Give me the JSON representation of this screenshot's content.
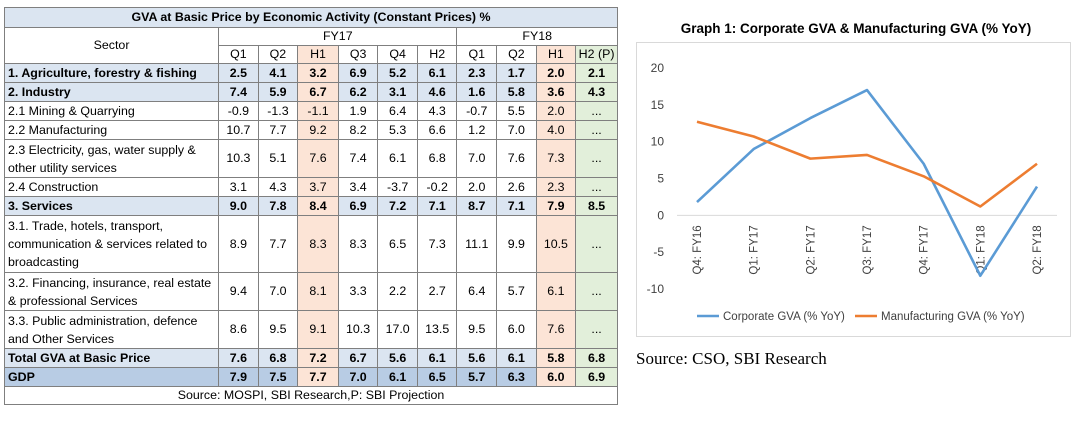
{
  "table": {
    "title": "GVA at Basic Price by Economic Activity (Constant Prices) %",
    "sector_header": "Sector",
    "fy17_label": "FY17",
    "fy18_label": "FY18",
    "sub_headers": [
      "Q1",
      "Q2",
      "H1",
      "Q3",
      "Q4",
      "H2",
      "Q1",
      "Q2",
      "H1",
      "H2 (P)"
    ],
    "rows": [
      {
        "sector": "1. Agriculture, forestry & fishing",
        "values": [
          "2.5",
          "4.1",
          "3.2",
          "6.9",
          "5.2",
          "6.1",
          "2.3",
          "1.7",
          "2.0",
          "2.1"
        ],
        "style": "bold"
      },
      {
        "sector": "2. Industry",
        "values": [
          "7.4",
          "5.9",
          "6.7",
          "6.2",
          "3.1",
          "4.6",
          "1.6",
          "5.8",
          "3.6",
          "4.3"
        ],
        "style": "bold"
      },
      {
        "sector": "2.1 Mining & Quarrying",
        "values": [
          "-0.9",
          "-1.3",
          "-1.1",
          "1.9",
          "6.4",
          "4.3",
          "-0.7",
          "5.5",
          "2.0",
          "..."
        ],
        "style": "normal"
      },
      {
        "sector": "2.2 Manufacturing",
        "values": [
          "10.7",
          "7.7",
          "9.2",
          "8.2",
          "5.3",
          "6.6",
          "1.2",
          "7.0",
          "4.0",
          "..."
        ],
        "style": "normal"
      },
      {
        "sector": "2.3 Electricity, gas, water supply & other utility services",
        "values": [
          "10.3",
          "5.1",
          "7.6",
          "7.4",
          "6.1",
          "6.8",
          "7.0",
          "7.6",
          "7.3",
          "..."
        ],
        "style": "normal"
      },
      {
        "sector": "2.4 Construction",
        "values": [
          "3.1",
          "4.3",
          "3.7",
          "3.4",
          "-3.7",
          "-0.2",
          "2.0",
          "2.6",
          "2.3",
          "..."
        ],
        "style": "normal"
      },
      {
        "sector": "3. Services",
        "values": [
          "9.0",
          "7.8",
          "8.4",
          "6.9",
          "7.2",
          "7.1",
          "8.7",
          "7.1",
          "7.9",
          "8.5"
        ],
        "style": "bold"
      },
      {
        "sector": "3.1. Trade, hotels, transport, communication & services related to broadcasting",
        "values": [
          "8.9",
          "7.7",
          "8.3",
          "8.3",
          "6.5",
          "7.3",
          "11.1",
          "9.9",
          "10.5",
          "..."
        ],
        "style": "normal"
      },
      {
        "sector": "3.2. Financing, insurance, real estate & professional Services",
        "values": [
          "9.4",
          "7.0",
          "8.1",
          "3.3",
          "2.2",
          "2.7",
          "6.4",
          "5.7",
          "6.1",
          "..."
        ],
        "style": "normal"
      },
      {
        "sector": "3.3. Public administration, defence and Other Services",
        "values": [
          "8.6",
          "9.5",
          "9.1",
          "10.3",
          "17.0",
          "13.5",
          "9.5",
          "6.0",
          "7.6",
          "..."
        ],
        "style": "normal"
      },
      {
        "sector": "Total GVA at Basic Price",
        "values": [
          "7.6",
          "6.8",
          "7.2",
          "6.7",
          "5.6",
          "6.1",
          "5.6",
          "6.1",
          "5.8",
          "6.8"
        ],
        "style": "bold"
      },
      {
        "sector": "GDP",
        "values": [
          "7.9",
          "7.5",
          "7.7",
          "7.0",
          "6.1",
          "6.5",
          "5.7",
          "6.3",
          "6.0",
          "6.9"
        ],
        "style": "bold-blue"
      }
    ],
    "source": "Source: MOSPI, SBI Research,P: SBI Projection"
  },
  "chart_data": {
    "type": "line",
    "title": "Graph 1: Corporate GVA & Manufacturing GVA (% YoY)",
    "categories": [
      "Q4: FY16",
      "Q1: FY17",
      "Q2: FY17",
      "Q3: FY17",
      "Q4: FY17",
      "Q1: FY18",
      "Q2: FY18"
    ],
    "series": [
      {
        "name": "Corporate GVA (% YoY)",
        "color": "#5b9bd5",
        "values": [
          1.8,
          9.0,
          13.2,
          17.0,
          7.0,
          -8.2,
          3.9
        ]
      },
      {
        "name": "Manufacturing GVA (% YoY)",
        "color": "#ed7d31",
        "values": [
          12.7,
          10.7,
          7.7,
          8.2,
          5.3,
          1.2,
          7.0
        ]
      }
    ],
    "ylim": [
      -10,
      20
    ],
    "yticks": [
      -10,
      -5,
      0,
      5,
      10,
      15,
      20
    ],
    "grid": false,
    "legend": "bottom",
    "xlabel": "",
    "ylabel": ""
  },
  "chart_source": "Source: CSO, SBI Research"
}
